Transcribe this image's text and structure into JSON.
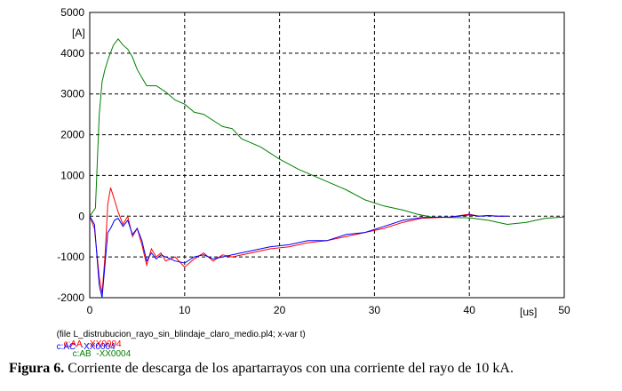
{
  "chart_data": {
    "type": "line",
    "ylabel": "[A]",
    "xlabel": "[us]",
    "xlim": [
      0,
      50
    ],
    "ylim": [
      -2000,
      5000
    ],
    "x_ticks": [
      0,
      10,
      20,
      30,
      40,
      50
    ],
    "x_tick_labels": [
      "0",
      "10",
      "20",
      "30",
      "40",
      "50"
    ],
    "y_ticks": [
      -2000,
      -1000,
      0,
      1000,
      2000,
      3000,
      4000,
      5000
    ],
    "y_tick_labels": [
      "-2000",
      "-1000",
      "0",
      "1000",
      "2000",
      "3000",
      "4000",
      "5000"
    ],
    "grid": true,
    "file_note": "(file L_distrubucion_rayo_sin_blindaje_claro_medio.pl4; x-var t)",
    "legend": [
      {
        "prefix": "c:AA",
        "suffix": "-XX0004",
        "color": "#ff0000"
      },
      {
        "prefix": "c:AB",
        "suffix": "-XX0004",
        "color": "#008000"
      },
      {
        "prefix": "c:AC",
        "suffix": "-XX0004",
        "color": "#0000ff"
      }
    ],
    "series": [
      {
        "name": "c:AA -XX0004",
        "color": "#ff0000",
        "x": [
          0,
          0.5,
          1.0,
          1.3,
          1.6,
          1.9,
          2.2,
          2.6,
          3.0,
          3.5,
          4.0,
          4.5,
          5.0,
          5.5,
          6.0,
          6.5,
          7.0,
          7.5,
          8.0,
          9.0,
          10.0,
          11.0,
          12.0,
          13.0,
          14.0,
          15.0,
          17.0,
          19.0,
          21.0,
          23.0,
          25.0,
          27.0,
          29.0,
          31.0,
          33.0,
          35.0,
          38.0,
          40.0,
          41.0,
          42.0,
          43.0,
          44.0
        ],
        "y": [
          0,
          -300,
          -1500,
          -1900,
          -1000,
          300,
          700,
          400,
          100,
          -200,
          0,
          -500,
          -300,
          -700,
          -1200,
          -800,
          -1000,
          -900,
          -1100,
          -1000,
          -1250,
          -1050,
          -900,
          -1100,
          -950,
          -1000,
          -900,
          -800,
          -750,
          -650,
          -600,
          -500,
          -400,
          -300,
          -150,
          -50,
          -20,
          50,
          0,
          20,
          0,
          0
        ]
      },
      {
        "name": "c:AB -XX0004",
        "color": "#008000",
        "x": [
          0,
          0.6,
          1.0,
          1.3,
          1.6,
          2.0,
          2.5,
          3.0,
          3.5,
          4.0,
          4.5,
          5.0,
          5.5,
          6.0,
          7.0,
          8.0,
          9.0,
          10.0,
          11.0,
          12.0,
          13.0,
          14.0,
          15.0,
          16.0,
          18.0,
          20.0,
          22.0,
          23.5,
          25.0,
          27.0,
          29.0,
          31.0,
          33.0,
          34.5,
          36.0,
          38.0,
          40.0,
          42.0,
          44.0,
          46.0,
          48.0,
          50.0
        ],
        "y": [
          0,
          200,
          2500,
          3300,
          3600,
          3900,
          4200,
          4350,
          4200,
          4100,
          3900,
          3600,
          3400,
          3200,
          3200,
          3050,
          2850,
          2750,
          2550,
          2500,
          2350,
          2200,
          2150,
          1900,
          1700,
          1400,
          1150,
          1000,
          850,
          650,
          400,
          250,
          150,
          50,
          -20,
          -30,
          -40,
          -100,
          -200,
          -150,
          -50,
          -20
        ]
      },
      {
        "name": "c:AC -XX0004",
        "color": "#0000ff",
        "x": [
          0,
          0.5,
          1.0,
          1.3,
          1.6,
          1.9,
          2.2,
          2.6,
          3.0,
          3.5,
          4.0,
          4.5,
          5.0,
          5.5,
          6.0,
          6.5,
          7.0,
          7.5,
          8.0,
          9.0,
          10.0,
          11.0,
          12.0,
          13.0,
          14.0,
          15.0,
          17.0,
          19.0,
          21.0,
          23.0,
          25.0,
          27.0,
          29.0,
          31.0,
          33.0,
          35.0,
          38.0,
          40.0,
          41.0,
          42.0,
          43.0,
          44.0
        ],
        "y": [
          0,
          -200,
          -1700,
          -2000,
          -1200,
          -400,
          -300,
          -100,
          -50,
          -250,
          -100,
          -450,
          -300,
          -600,
          -1100,
          -900,
          -1050,
          -950,
          -1000,
          -1100,
          -1150,
          -1000,
          -950,
          -1050,
          -1000,
          -950,
          -850,
          -750,
          -700,
          -600,
          -600,
          -450,
          -400,
          -250,
          -100,
          -30,
          -20,
          30,
          0,
          10,
          0,
          0
        ]
      }
    ]
  },
  "caption": {
    "label": "Figura 6.",
    "text": " Corriente de descarga de los apartarrayos con una corriente del rayo de 10 kA."
  }
}
